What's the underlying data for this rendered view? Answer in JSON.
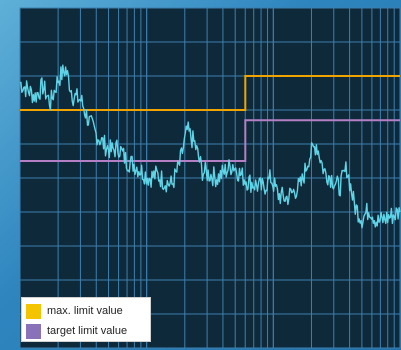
{
  "colors": {
    "plot_background": "#0e2a3a",
    "grid": "#3d7fae",
    "frame_background": "#2f86bf",
    "measured_signal": "#5fd4e6"
  },
  "chart_data": {
    "type": "line",
    "title": "",
    "xlabel": "",
    "ylabel": "",
    "xlim": [
      0,
      100
    ],
    "ylim": [
      0,
      100
    ],
    "grid": true,
    "legend_placement": "bottom-left",
    "series": [
      {
        "name": "max. limit value",
        "color": "#f0a400",
        "style": "step",
        "x": [
          0,
          59.3,
          59.3,
          100
        ],
        "y": [
          70,
          70,
          80,
          80
        ]
      },
      {
        "name": "target limit value",
        "color": "#b57fc6",
        "style": "step",
        "x": [
          0,
          59.3,
          59.3,
          100
        ],
        "y": [
          55,
          55,
          67,
          67
        ]
      },
      {
        "name": "",
        "color": "#5fd4e6",
        "style": "noisy",
        "x": [
          0,
          2,
          4,
          6,
          8,
          10,
          12,
          14,
          16,
          18,
          20,
          22,
          24,
          26,
          28,
          30,
          32,
          34,
          36,
          38,
          40,
          42,
          44,
          46,
          48,
          50,
          52,
          54,
          56,
          58,
          60,
          62,
          64,
          66,
          68,
          70,
          72,
          74,
          76,
          78,
          80,
          82,
          84,
          86,
          88,
          90,
          92,
          94,
          96,
          98,
          100
        ],
        "y": [
          78,
          76,
          74,
          77,
          72,
          79,
          82,
          74,
          73,
          67,
          63,
          60,
          58,
          59,
          55,
          54,
          52,
          50,
          51,
          49,
          48,
          54,
          64,
          60,
          52,
          51,
          50,
          52,
          54,
          51,
          49,
          48,
          47,
          50,
          45,
          44,
          46,
          48,
          56,
          60,
          52,
          50,
          47,
          53,
          42,
          38,
          41,
          37,
          38,
          39,
          40
        ]
      }
    ],
    "legend": [
      {
        "label": "max. limit value",
        "color": "#f5c400"
      },
      {
        "label": "target limit value",
        "color": "#8a72b8"
      }
    ]
  }
}
